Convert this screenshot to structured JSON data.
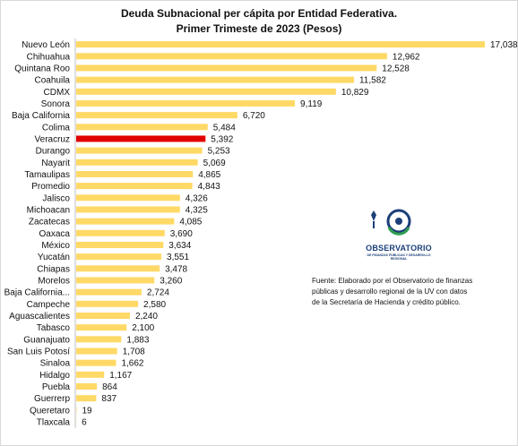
{
  "chart_data": {
    "type": "bar",
    "orientation": "horizontal",
    "title": "Deuda Subnacional per cápita por Entidad Federativa.",
    "subtitle": "Primer Trimeste de 2023 (Pesos)",
    "xlabel": "",
    "ylabel": "",
    "grid": false,
    "xlim": [
      0,
      17038
    ],
    "categories": [
      "Nuevo León",
      "Chihuahua",
      "Quintana Roo",
      "Coahuila",
      "CDMX",
      "Sonora",
      "Baja California",
      "Colima",
      "Veracruz",
      "Durango",
      "Nayarit",
      "Tamaulipas",
      "Promedio",
      "Jalisco",
      "Michoacan",
      "Zacatecas",
      "Oaxaca",
      "México",
      "Yucatán",
      "Chiapas",
      "Morelos",
      "Baja California...",
      "Campeche",
      "Aguascalientes",
      "Tabasco",
      "Guanajuato",
      "San Luis Potosí",
      "Sinaloa",
      "Hidalgo",
      "Puebla",
      "Guerrerp",
      "Queretaro",
      "Tlaxcala"
    ],
    "values": [
      17038,
      12962,
      12528,
      11582,
      10829,
      9119,
      6720,
      5484,
      5392,
      5253,
      5069,
      4865,
      4843,
      4326,
      4325,
      4085,
      3690,
      3634,
      3551,
      3478,
      3260,
      2724,
      2580,
      2240,
      2100,
      1883,
      1708,
      1662,
      1167,
      864,
      837,
      19,
      6
    ],
    "value_labels": [
      "17,038",
      "12,962",
      "12,528",
      "11,582",
      "10,829",
      "9,119",
      "6,720",
      "5,484",
      "5,392",
      "5,253",
      "5,069",
      "4,865",
      "4,843",
      "4,326",
      "4,325",
      "4,085",
      "3,690",
      "3,634",
      "3,551",
      "3,478",
      "3,260",
      "2,724",
      "2,580",
      "2,240",
      "2,100",
      "1,883",
      "1,708",
      "1,662",
      "1,167",
      "864",
      "837",
      "19",
      "6"
    ],
    "highlight": "Veracruz",
    "colors": {
      "bar": "#ffd966",
      "highlight": "#e00000",
      "axis": "#bfbfbf"
    }
  },
  "logo": {
    "name": "OBSERVATORIO",
    "subtitle": "DE FINANZAS PÚBLICAS Y DESARROLLO REGIONAL",
    "colors": {
      "primary": "#1b3f7a",
      "accent": "#2e9e4f"
    }
  },
  "source_note": "Fuente: Elaborado por el Observatorio de finanzas públicas y desarrollo regional de la UV con datos de la Secretaría de Hacienda y crédito público."
}
